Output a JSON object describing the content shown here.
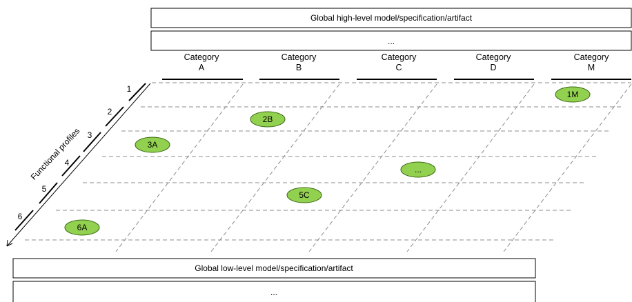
{
  "top_boxes": [
    {
      "label": "Global high-level model/specification/artifact"
    },
    {
      "label": "..."
    }
  ],
  "bottom_boxes": [
    {
      "label": "Global low-level model/specification/artifact"
    },
    {
      "label": "..."
    }
  ],
  "categories": [
    {
      "line1": "Category",
      "line2": "A"
    },
    {
      "line1": "Category",
      "line2": "B"
    },
    {
      "line1": "Category",
      "line2": "C"
    },
    {
      "line1": "Category",
      "line2": "D"
    },
    {
      "line1": "Category",
      "line2": "M"
    }
  ],
  "profiles_axis_label": "Functional profiles",
  "profiles": [
    "1",
    "2",
    "3",
    "4",
    "5",
    "6"
  ],
  "cells": [
    {
      "label": "1M",
      "category": 5,
      "profile": 1
    },
    {
      "label": "2B",
      "category": 2,
      "profile": 2
    },
    {
      "label": "3A",
      "category": 1,
      "profile": 3
    },
    {
      "label": "...",
      "category": 3.5,
      "profile": 4
    },
    {
      "label": "5C",
      "category": 2.5,
      "profile": 5
    },
    {
      "label": "6A",
      "category": 0.5,
      "profile": 6
    }
  ],
  "colors": {
    "cell_fill": "#92d050",
    "grid": "#8c8c8c"
  }
}
